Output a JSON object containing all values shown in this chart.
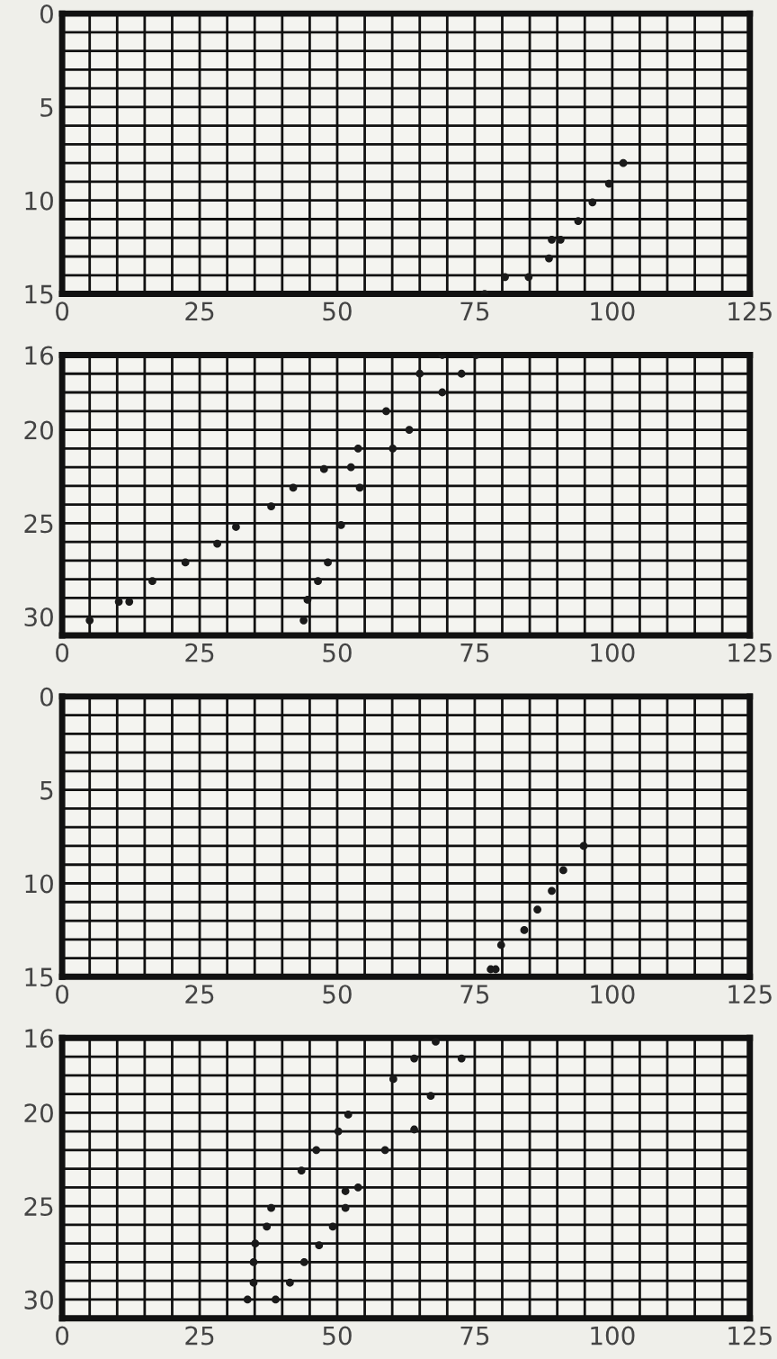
{
  "chart_data": [
    {
      "type": "scatter",
      "marker": "circle",
      "grid": true,
      "color": "#1a1a1a",
      "x": [
        102,
        99.4,
        96.4,
        93.8,
        89,
        90.6,
        88.5,
        84.8,
        80.5,
        76.8
      ],
      "values": [
        8,
        9.1,
        10.1,
        11.1,
        12.1,
        12.1,
        13.1,
        14.1,
        14.1,
        15
      ],
      "xlim": [
        0,
        125
      ],
      "ylim": [
        15,
        0
      ],
      "xticks": [
        0,
        {
          "value": 5,
          "label": null
        },
        {
          "value": 10,
          "label": null
        },
        {
          "value": 15,
          "label": null
        },
        {
          "value": 20,
          "label": null
        },
        25,
        {
          "value": 30,
          "label": null
        },
        {
          "value": 35,
          "label": null
        },
        {
          "value": 40,
          "label": null
        },
        {
          "value": 45,
          "label": null
        },
        50,
        {
          "value": 55,
          "label": null
        },
        {
          "value": 60,
          "label": null
        },
        {
          "value": 65,
          "label": null
        },
        {
          "value": 70,
          "label": null
        },
        75,
        {
          "value": 80,
          "label": null
        },
        {
          "value": 85,
          "label": null
        },
        {
          "value": 90,
          "label": null
        },
        {
          "value": 95,
          "label": null
        },
        100,
        {
          "value": 105,
          "label": null
        },
        {
          "value": 110,
          "label": null
        },
        {
          "value": 115,
          "label": null
        },
        {
          "value": 120,
          "label": null
        },
        125
      ],
      "yticks": [
        0,
        {
          "value": 1,
          "label": null
        },
        {
          "value": 2,
          "label": null
        },
        {
          "value": 3,
          "label": null
        },
        {
          "value": 4,
          "label": null
        },
        5,
        {
          "value": 6,
          "label": null
        },
        {
          "value": 7,
          "label": null
        },
        {
          "value": 8,
          "label": null
        },
        {
          "value": 9,
          "label": null
        },
        10,
        {
          "value": 11,
          "label": null
        },
        {
          "value": 12,
          "label": null
        },
        {
          "value": 13,
          "label": null
        },
        {
          "value": 14,
          "label": null
        },
        15
      ]
    },
    {
      "type": "scatter",
      "marker": "circle",
      "grid": true,
      "color": "#1a1a1a",
      "x": [
        5,
        10.3,
        12.2,
        16.4,
        22.4,
        28.2,
        31.6,
        38,
        42,
        47.6,
        52.5,
        53.8,
        54.1,
        50.7,
        48.3,
        46.5,
        44.6,
        43.9,
        58.9,
        60.1,
        63.1,
        65,
        69.1,
        69.1,
        72.6,
        75.3
      ],
      "values": [
        30.2,
        29.2,
        29.2,
        28.1,
        27.1,
        26.1,
        25.2,
        24.1,
        23.1,
        22.1,
        22,
        21,
        23.1,
        25.1,
        27.1,
        28.1,
        29.1,
        30.2,
        19,
        21,
        20,
        17,
        18,
        16,
        17,
        16
      ],
      "xlim": [
        0,
        125
      ],
      "ylim": [
        31,
        16
      ],
      "xticks": [
        0,
        {
          "value": 5,
          "label": null
        },
        {
          "value": 10,
          "label": null
        },
        {
          "value": 15,
          "label": null
        },
        {
          "value": 20,
          "label": null
        },
        25,
        {
          "value": 30,
          "label": null
        },
        {
          "value": 35,
          "label": null
        },
        {
          "value": 40,
          "label": null
        },
        {
          "value": 45,
          "label": null
        },
        50,
        {
          "value": 55,
          "label": null
        },
        {
          "value": 60,
          "label": null
        },
        {
          "value": 65,
          "label": null
        },
        {
          "value": 70,
          "label": null
        },
        75,
        {
          "value": 80,
          "label": null
        },
        {
          "value": 85,
          "label": null
        },
        {
          "value": 90,
          "label": null
        },
        {
          "value": 95,
          "label": null
        },
        100,
        {
          "value": 105,
          "label": null
        },
        {
          "value": 110,
          "label": null
        },
        {
          "value": 115,
          "label": null
        },
        {
          "value": 120,
          "label": null
        },
        125
      ],
      "yticks": [
        16,
        {
          "value": 17,
          "label": null
        },
        {
          "value": 18,
          "label": null
        },
        {
          "value": 19,
          "label": null
        },
        20,
        {
          "value": 21,
          "label": null
        },
        {
          "value": 22,
          "label": null
        },
        {
          "value": 23,
          "label": null
        },
        {
          "value": 24,
          "label": null
        },
        25,
        {
          "value": 26,
          "label": null
        },
        {
          "value": 27,
          "label": null
        },
        {
          "value": 28,
          "label": null
        },
        {
          "value": 29,
          "label": null
        },
        30,
        {
          "value": 31,
          "label": null
        }
      ]
    },
    {
      "type": "scatter",
      "marker": "circle",
      "grid": true,
      "color": "#1a1a1a",
      "x": [
        94.8,
        91.1,
        89,
        86.4,
        84,
        79.8,
        77.9,
        78.8
      ],
      "values": [
        8,
        9.3,
        10.4,
        11.4,
        12.5,
        13.3,
        14.6,
        14.6
      ],
      "xlim": [
        0,
        125
      ],
      "ylim": [
        15,
        0
      ],
      "xticks": [
        0,
        {
          "value": 5,
          "label": null
        },
        {
          "value": 10,
          "label": null
        },
        {
          "value": 15,
          "label": null
        },
        {
          "value": 20,
          "label": null
        },
        25,
        {
          "value": 30,
          "label": null
        },
        {
          "value": 35,
          "label": null
        },
        {
          "value": 40,
          "label": null
        },
        {
          "value": 45,
          "label": null
        },
        50,
        {
          "value": 55,
          "label": null
        },
        {
          "value": 60,
          "label": null
        },
        {
          "value": 65,
          "label": null
        },
        {
          "value": 70,
          "label": null
        },
        75,
        {
          "value": 80,
          "label": null
        },
        {
          "value": 85,
          "label": null
        },
        {
          "value": 90,
          "label": null
        },
        {
          "value": 95,
          "label": null
        },
        100,
        {
          "value": 105,
          "label": null
        },
        {
          "value": 110,
          "label": null
        },
        {
          "value": 115,
          "label": null
        },
        {
          "value": 120,
          "label": null
        },
        125
      ],
      "yticks": [
        0,
        {
          "value": 1,
          "label": null
        },
        {
          "value": 2,
          "label": null
        },
        {
          "value": 3,
          "label": null
        },
        {
          "value": 4,
          "label": null
        },
        5,
        {
          "value": 6,
          "label": null
        },
        {
          "value": 7,
          "label": null
        },
        {
          "value": 8,
          "label": null
        },
        {
          "value": 9,
          "label": null
        },
        10,
        {
          "value": 11,
          "label": null
        },
        {
          "value": 12,
          "label": null
        },
        {
          "value": 13,
          "label": null
        },
        {
          "value": 14,
          "label": null
        },
        15
      ]
    },
    {
      "type": "scatter",
      "marker": "circle",
      "grid": true,
      "color": "#1a1a1a",
      "x": [
        67.9,
        72.6,
        64,
        60.2,
        67,
        52,
        50.2,
        64,
        46.2,
        58.7,
        43.5,
        53.8,
        51.5,
        51.5,
        38,
        37.2,
        49.2,
        35.1,
        46.7,
        44,
        34.8,
        41.4,
        34.8,
        38.8,
        33.7
      ],
      "values": [
        16.2,
        17.1,
        17.1,
        18.2,
        19.1,
        20.1,
        21,
        20.9,
        22,
        22,
        23.1,
        24,
        24.2,
        25.1,
        25.1,
        26.1,
        26.1,
        27,
        27.1,
        28,
        28,
        29.1,
        29.1,
        30,
        30
      ],
      "xlim": [
        0,
        125
      ],
      "ylim": [
        31,
        16
      ],
      "xticks": [
        0,
        {
          "value": 5,
          "label": null
        },
        {
          "value": 10,
          "label": null
        },
        {
          "value": 15,
          "label": null
        },
        {
          "value": 20,
          "label": null
        },
        25,
        {
          "value": 30,
          "label": null
        },
        {
          "value": 35,
          "label": null
        },
        {
          "value": 40,
          "label": null
        },
        {
          "value": 45,
          "label": null
        },
        50,
        {
          "value": 55,
          "label": null
        },
        {
          "value": 60,
          "label": null
        },
        {
          "value": 65,
          "label": null
        },
        {
          "value": 70,
          "label": null
        },
        75,
        {
          "value": 80,
          "label": null
        },
        {
          "value": 85,
          "label": null
        },
        {
          "value": 90,
          "label": null
        },
        {
          "value": 95,
          "label": null
        },
        100,
        {
          "value": 105,
          "label": null
        },
        {
          "value": 110,
          "label": null
        },
        {
          "value": 115,
          "label": null
        },
        {
          "value": 120,
          "label": null
        },
        125
      ],
      "yticks": [
        16,
        {
          "value": 17,
          "label": null
        },
        {
          "value": 18,
          "label": null
        },
        {
          "value": 19,
          "label": null
        },
        20,
        {
          "value": 21,
          "label": null
        },
        {
          "value": 22,
          "label": null
        },
        {
          "value": 23,
          "label": null
        },
        {
          "value": 24,
          "label": null
        },
        25,
        {
          "value": 26,
          "label": null
        },
        {
          "value": 27,
          "label": null
        },
        {
          "value": 28,
          "label": null
        },
        {
          "value": 29,
          "label": null
        },
        30,
        {
          "value": 31,
          "label": null
        }
      ]
    }
  ]
}
